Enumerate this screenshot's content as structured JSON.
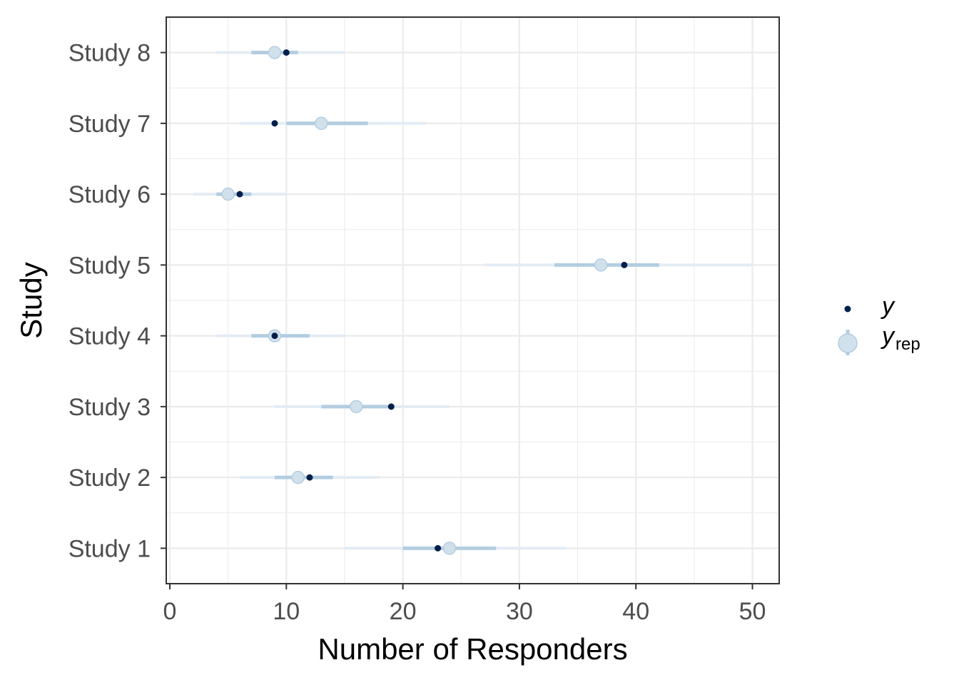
{
  "chart_data": {
    "type": "interval",
    "xlabel": "Number of Responders",
    "ylabel": "Study",
    "xlim": [
      0,
      52
    ],
    "x_ticks": [
      0,
      10,
      20,
      30,
      40,
      50
    ],
    "grid": true,
    "legend_position": "right",
    "colors": {
      "y_point": "#011f4b",
      "yrep_point": "#d1e1ec",
      "yrep_point_border": "#b3cde0",
      "inner_interval": "#b3cde0",
      "outer_interval": "#e3ecf4",
      "grid": "#ebebeb",
      "panel_border": "#333333"
    },
    "legend": [
      {
        "label": "y",
        "sub": ""
      },
      {
        "label": "y",
        "sub": "rep"
      }
    ],
    "categories": [
      "Study 8",
      "Study 7",
      "Study 6",
      "Study 5",
      "Study 4",
      "Study 3",
      "Study 2",
      "Study 1"
    ],
    "series": [
      {
        "name": "y",
        "values": [
          10,
          9,
          6,
          39,
          9,
          19,
          12,
          23
        ]
      },
      {
        "name": "yrep",
        "median": [
          9,
          13,
          5,
          37,
          9,
          16,
          11,
          24
        ],
        "inner_low": [
          7,
          10,
          4,
          33,
          7,
          13,
          9,
          20
        ],
        "inner_high": [
          11,
          17,
          7,
          42,
          12,
          19,
          14,
          28
        ],
        "outer_low": [
          4,
          6,
          2,
          27,
          4,
          9,
          6,
          15
        ],
        "outer_high": [
          15,
          22,
          10,
          50,
          15,
          24,
          18,
          34
        ]
      }
    ]
  }
}
